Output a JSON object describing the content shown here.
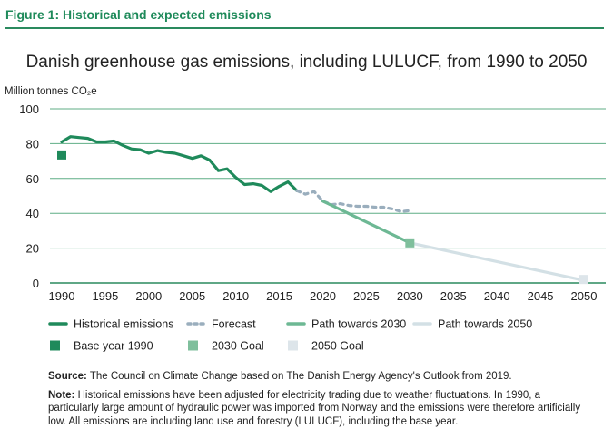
{
  "figure_label": "Figure 1: Historical and expected emissions",
  "chart_data": {
    "type": "line",
    "title": "Danish greenhouse gas emissions, including LULUCF, from 1990 to 2050",
    "ylabel": "Million tonnes CO₂e",
    "xlabel": "",
    "xlim": [
      1989,
      2051
    ],
    "ylim": [
      0,
      100
    ],
    "x_ticks": [
      1990,
      1995,
      2000,
      2005,
      2010,
      2015,
      2020,
      2025,
      2030,
      2035,
      2040,
      2045,
      2050
    ],
    "y_ticks": [
      0,
      20,
      40,
      60,
      80,
      100
    ],
    "grid": "horizontal",
    "legend_position": "bottom",
    "series": [
      {
        "name": "Historical emissions",
        "style": "solid",
        "color": "#1f8a5b",
        "x": [
          1990,
          1991,
          1992,
          1993,
          1994,
          1995,
          1996,
          1997,
          1998,
          1999,
          2000,
          2001,
          2002,
          2003,
          2004,
          2005,
          2006,
          2007,
          2008,
          2009,
          2010,
          2011,
          2012,
          2013,
          2014,
          2015,
          2016,
          2017
        ],
        "y": [
          81,
          84,
          83.5,
          83,
          81,
          81,
          81.5,
          79,
          77,
          76.5,
          74.5,
          76,
          75,
          74.5,
          73,
          71.5,
          73,
          70.5,
          64.5,
          65.5,
          60.5,
          56.5,
          57,
          56,
          52.5,
          55.5,
          58,
          53
        ]
      },
      {
        "name": "Forecast",
        "style": "dotted",
        "color": "#9aaebd",
        "x": [
          2017,
          2018,
          2019,
          2020,
          2021,
          2022,
          2023,
          2024,
          2025,
          2026,
          2027,
          2028,
          2029,
          2030
        ],
        "y": [
          53,
          51,
          52.5,
          47,
          45,
          45.5,
          44.5,
          44,
          44,
          43.5,
          43.5,
          42.5,
          41,
          41.5
        ]
      },
      {
        "name": "Path towards 2030",
        "style": "solid",
        "color": "#6db894",
        "x": [
          2020,
          2030
        ],
        "y": [
          47,
          23
        ]
      },
      {
        "name": "Path towards 2050",
        "style": "solid",
        "color": "#d3e0e5",
        "x": [
          2030,
          2050
        ],
        "y": [
          23,
          1.5
        ]
      }
    ],
    "markers": [
      {
        "name": "Base year 1990",
        "x": 1990,
        "y": 73.5,
        "color": "#1f8a5b"
      },
      {
        "name": "2030 Goal",
        "x": 2030,
        "y": 23,
        "color": "#7fbf9c"
      },
      {
        "name": "2050 Goal",
        "x": 2050,
        "y": 2,
        "color": "#dde5ea"
      }
    ]
  },
  "notes": {
    "source_label": "Source:",
    "source_text": " The Council on Climate Change based on The Danish Energy Agency's Outlook from 2019.",
    "note_label": "Note:",
    "note_text": " Historical emissions have been adjusted for electricity trading due to weather fluctuations. In 1990, a particularly large amount of hydraulic power was imported from Norway and the emissions were therefore artificially low. All emissions are including land use and forestry (LULUCF), including the base year."
  }
}
